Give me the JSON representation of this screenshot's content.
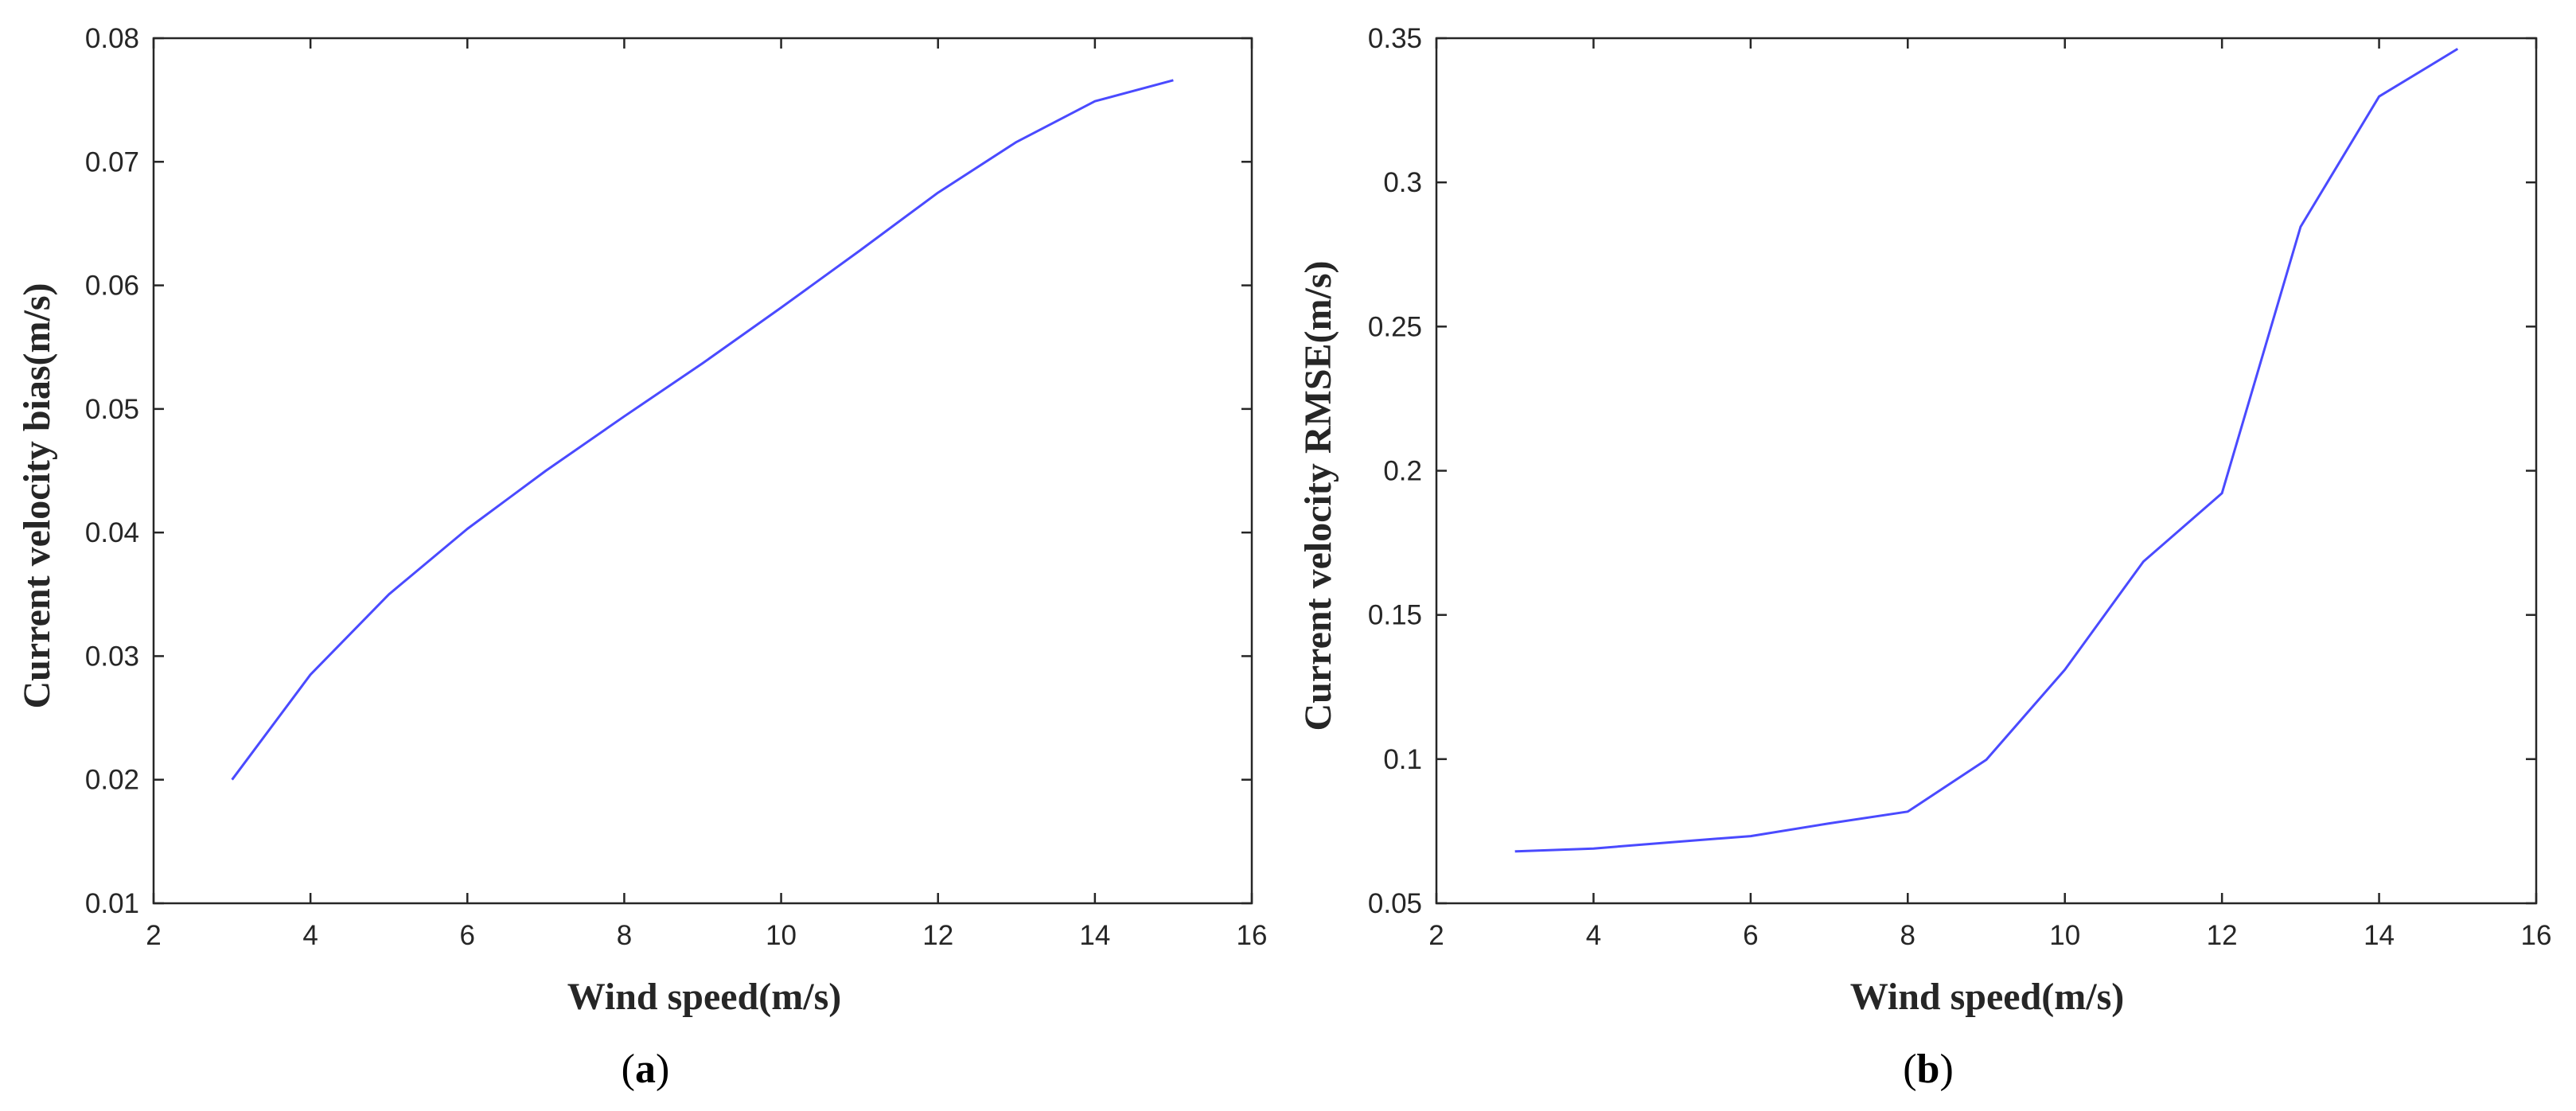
{
  "chart_data": [
    {
      "type": "line",
      "panel": "a",
      "xlabel": "Wind speed(m/s)",
      "ylabel": "Current velocity bias(m/s)",
      "xlim": [
        2,
        16
      ],
      "ylim": [
        0.01,
        0.08
      ],
      "xticks": [
        "2",
        "4",
        "6",
        "8",
        "10",
        "12",
        "14",
        "16"
      ],
      "yticks": [
        "0.01",
        "0.02",
        "0.03",
        "0.04",
        "0.05",
        "0.06",
        "0.07",
        "0.08"
      ],
      "grid": false,
      "color": "#4a4aff",
      "series": [
        {
          "x": [
            3,
            4,
            5,
            6,
            7,
            8,
            9,
            10,
            11,
            12,
            13,
            14,
            15
          ],
          "values": [
            0.02,
            0.0285,
            0.035,
            0.0403,
            0.045,
            0.0494,
            0.0537,
            0.0582,
            0.0628,
            0.0675,
            0.0716,
            0.0749,
            0.0766
          ]
        }
      ]
    },
    {
      "type": "line",
      "panel": "b",
      "xlabel": "Wind speed(m/s)",
      "ylabel": "Current velocity RMSE(m/s)",
      "xlim": [
        2,
        16
      ],
      "ylim": [
        0.05,
        0.35
      ],
      "xticks": [
        "2",
        "4",
        "6",
        "8",
        "10",
        "12",
        "14",
        "16"
      ],
      "yticks": [
        "0.05",
        "0.1",
        "0.15",
        "0.2",
        "0.25",
        "0.3",
        "0.35"
      ],
      "grid": false,
      "color": "#4a4aff",
      "series": [
        {
          "x": [
            3,
            4,
            5,
            6,
            7,
            8,
            9,
            10,
            11,
            12,
            13,
            14,
            15
          ],
          "values": [
            0.068,
            0.069,
            0.0712,
            0.0733,
            0.0777,
            0.0818,
            0.0998,
            0.131,
            0.1685,
            0.1922,
            0.2846,
            0.3298,
            0.3463
          ]
        }
      ]
    }
  ]
}
